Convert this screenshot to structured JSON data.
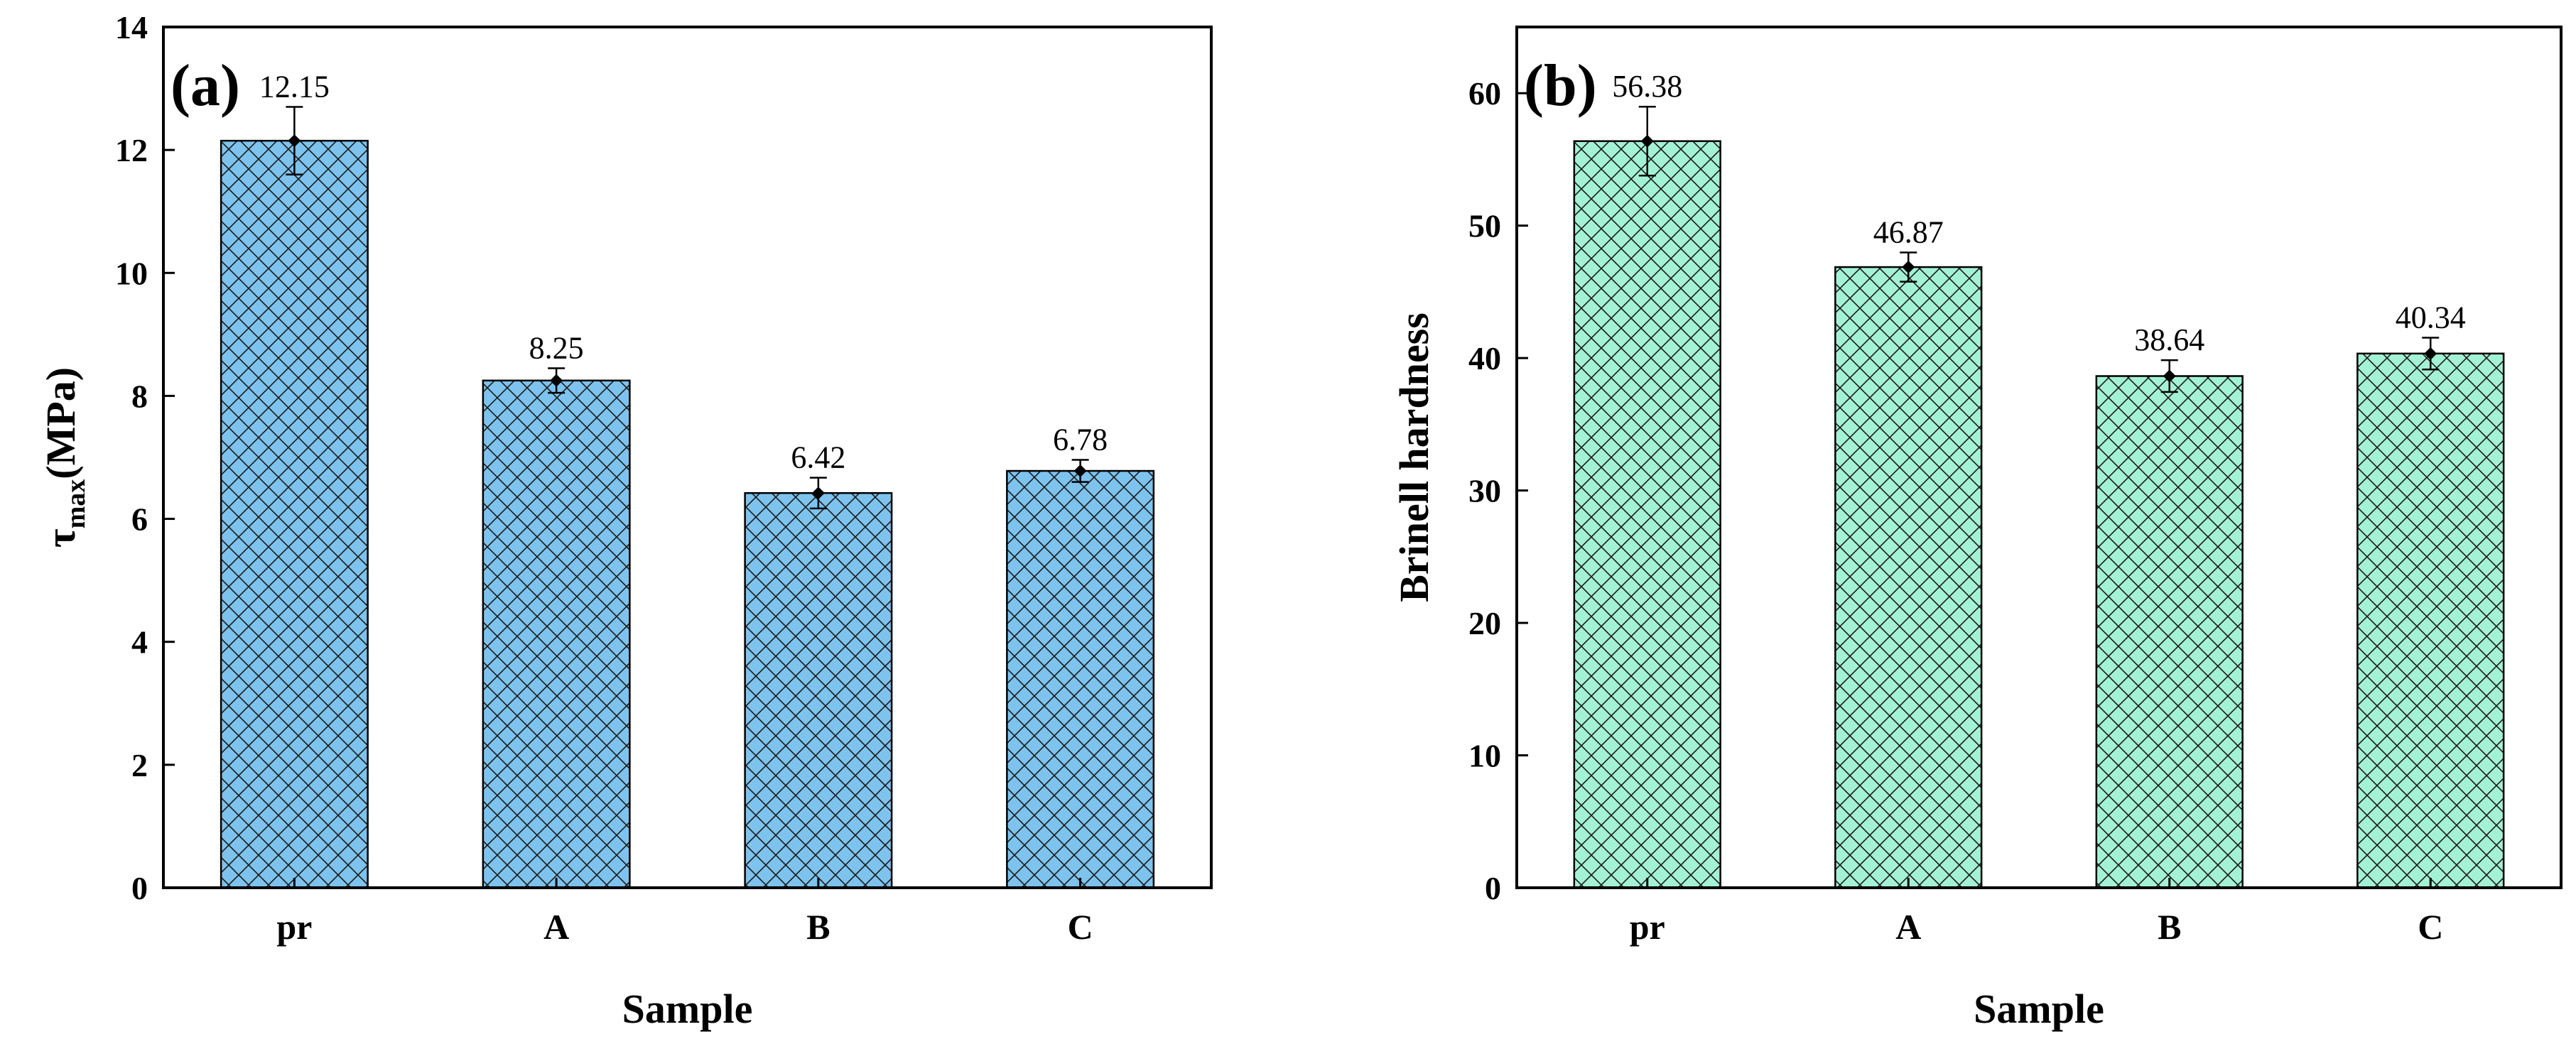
{
  "chart_data": [
    {
      "type": "bar",
      "panel": "(a)",
      "categories": [
        "pr",
        "A",
        "B",
        "C"
      ],
      "values": [
        12.15,
        8.25,
        6.42,
        6.78
      ],
      "value_labels": [
        "12.15",
        "8.25",
        "6.42",
        "6.78"
      ],
      "errors": [
        0.55,
        0.2,
        0.25,
        0.18
      ],
      "ylim": [
        0,
        14
      ],
      "yticks": [
        0,
        2,
        4,
        6,
        8,
        10,
        12,
        14
      ],
      "ylabel_main": "τ",
      "ylabel_sub": "max",
      "ylabel_unit": "(MPa)",
      "xlabel": "Sample",
      "bar_color": "#7dc3ee",
      "hatch_color": "#1a1a1a"
    },
    {
      "type": "bar",
      "panel": "(b)",
      "categories": [
        "pr",
        "A",
        "B",
        "C"
      ],
      "values": [
        56.38,
        46.87,
        38.64,
        40.34
      ],
      "value_labels": [
        "56.38",
        "46.87",
        "38.64",
        "40.34"
      ],
      "errors": [
        2.6,
        1.1,
        1.2,
        1.2
      ],
      "ylim": [
        0,
        65
      ],
      "yticks": [
        0,
        10,
        20,
        30,
        40,
        50,
        60
      ],
      "ylabel": "Brinell hardness",
      "xlabel": "Sample",
      "bar_color": "#a4f2d6",
      "hatch_color": "#1a1a1a"
    }
  ]
}
